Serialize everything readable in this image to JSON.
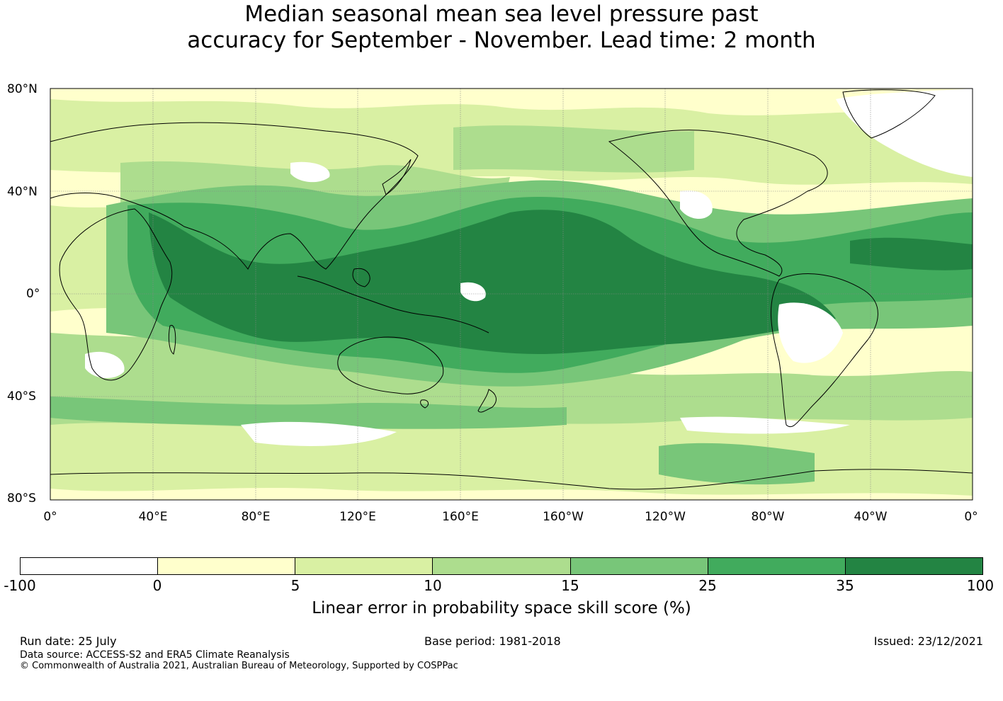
{
  "title_line1": "Median seasonal mean sea level pressure past",
  "title_line2": "accuracy for September - November. Lead time: 2 month",
  "map": {
    "lat_labels": [
      "80°N",
      "40°N",
      "0°",
      "40°S",
      "80°S"
    ],
    "lon_labels": [
      "0°",
      "40°E",
      "80°E",
      "120°E",
      "160°E",
      "160°W",
      "120°W",
      "80°W",
      "40°W",
      "0°"
    ],
    "colors": {
      "white": "#ffffff",
      "c0_5": "#ffffcc",
      "c5_10": "#d9f0a3",
      "c10_15": "#addd8e",
      "c15_25": "#78c679",
      "c25_35": "#41ab5d",
      "c35_100": "#238443"
    }
  },
  "colorbar": {
    "ticks": [
      "-100",
      "0",
      "5",
      "10",
      "15",
      "25",
      "35",
      "100"
    ],
    "colors": [
      "#ffffff",
      "#ffffcc",
      "#d9f0a3",
      "#addd8e",
      "#78c679",
      "#41ab5d",
      "#238443"
    ],
    "label": "Linear error in probability space skill score (%)"
  },
  "footer": {
    "run_date": "Run date: 25 July",
    "base_period": "Base period: 1981-2018",
    "issued": "Issued: 23/12/2021",
    "data_source": "Data source: ACCESS-S2 and ERA5 Climate Reanalysis",
    "copyright": "© Commonwealth of Australia 2021, Australian Bureau of Meteorology, Supported by COSPPac"
  }
}
